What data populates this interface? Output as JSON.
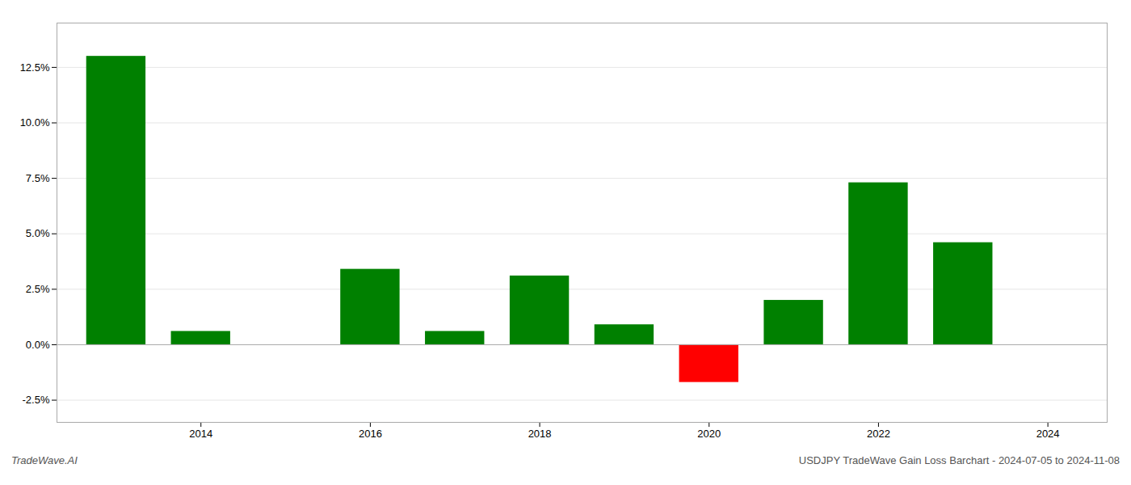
{
  "chart_data": {
    "type": "bar",
    "x": [
      2013,
      2014,
      2016,
      2017,
      2018,
      2019,
      2020,
      2021,
      2022,
      2023
    ],
    "values": [
      0.13,
      0.006,
      0.034,
      0.006,
      0.031,
      0.009,
      -0.017,
      0.02,
      0.073,
      0.046
    ],
    "colors": [
      "#008000",
      "#008000",
      "#008000",
      "#008000",
      "#008000",
      "#008000",
      "#ff0000",
      "#008000",
      "#008000",
      "#008000"
    ],
    "xlim": [
      2012.3,
      2024.7
    ],
    "xticks": [
      2014,
      2016,
      2018,
      2020,
      2022,
      2024
    ],
    "ylim": [
      -0.035,
      0.145
    ],
    "yticks": [
      {
        "value": -0.025,
        "label": "-2.5%"
      },
      {
        "value": 0.0,
        "label": "0.0%"
      },
      {
        "value": 0.025,
        "label": "2.5%"
      },
      {
        "value": 0.05,
        "label": "5.0%"
      },
      {
        "value": 0.075,
        "label": "7.5%"
      },
      {
        "value": 0.1,
        "label": "10.0%"
      },
      {
        "value": 0.125,
        "label": "12.5%"
      }
    ],
    "grid": true,
    "annotations": [
      "TradeWave.AI",
      "USDJPY TradeWave Gain Loss Barchart - 2024-07-05 to 2024-11-08"
    ]
  }
}
